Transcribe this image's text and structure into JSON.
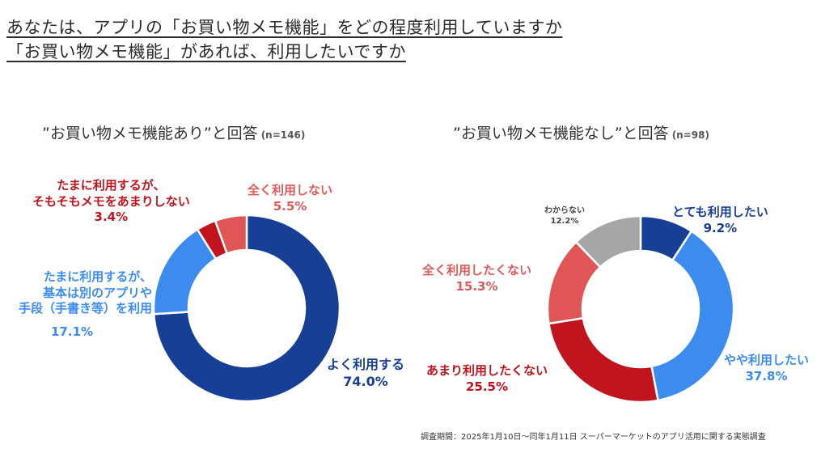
{
  "headline": {
    "line1": "あなたは、アプリの「お買い物メモ機能」をどの程度利用していますか",
    "line2": "「お買い物メモ機能」があれば、利用したいですか"
  },
  "chart_data": [
    {
      "type": "pie",
      "title": "”お買い物メモ機能あり”と回答",
      "n_label": "(n=146)",
      "slices": [
        {
          "label": "よく利用する",
          "value": 74.0,
          "color": "#173f96"
        },
        {
          "label": "たまに利用するが、基本は別のアプリや手段（手書き等）を利用",
          "value": 17.1,
          "color": "#3c8cf0"
        },
        {
          "label": "たまに利用するが、そもそもメモをあまりしない",
          "value": 3.4,
          "color": "#c0141e"
        },
        {
          "label": "全く利用しない",
          "value": 5.5,
          "color": "#e05656"
        }
      ]
    },
    {
      "type": "pie",
      "title": "”お買い物メモ機能なし”と回答",
      "n_label": "(n=98)",
      "slices": [
        {
          "label": "とても利用したい",
          "value": 9.2,
          "color": "#173f96"
        },
        {
          "label": "やや利用したい",
          "value": 37.8,
          "color": "#3c8cf0"
        },
        {
          "label": "あまり利用したくない",
          "value": 25.5,
          "color": "#c0141e"
        },
        {
          "label": "全く利用したくない",
          "value": 15.3,
          "color": "#e05656"
        },
        {
          "label": "わからない",
          "value": 12.2,
          "color": "#a6a6a6"
        }
      ]
    }
  ],
  "labels": {
    "c1": {
      "s0": {
        "text": "よく利用する",
        "pct": "74.0%"
      },
      "s1": {
        "line1": "たまに利用するが、",
        "line2": "基本は別のアプリや",
        "line3": "手段（手書き等）を利用",
        "pct": "17.1%"
      },
      "s2": {
        "line1": "たまに利用するが、",
        "line2": "そもそもメモをあまりしない",
        "pct": "3.4%"
      },
      "s3": {
        "text": "全く利用しない",
        "pct": "5.5%"
      }
    },
    "c2": {
      "s0": {
        "text": "とても利用したい",
        "pct": "9.2%"
      },
      "s1": {
        "text": "やや利用したい",
        "pct": "37.8%"
      },
      "s2": {
        "text": "あまり利用したくない",
        "pct": "25.5%"
      },
      "s3": {
        "text": "全く利用したくない",
        "pct": "15.3%"
      },
      "s4": {
        "text": "わからない",
        "pct": "12.2%"
      }
    }
  },
  "footnote": "調査期間：2025年1月10日～同年1月11日 スーパーマーケットのアプリ活用に関する実態調査"
}
